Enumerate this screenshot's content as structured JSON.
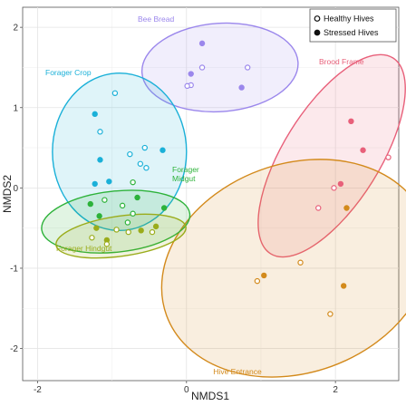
{
  "chart_data": {
    "type": "scatter",
    "xlabel": "NMDS1",
    "ylabel": "NMDS2",
    "xlim": [
      -2.2,
      2.85
    ],
    "ylim": [
      -2.4,
      2.25
    ],
    "x_ticks": [
      -2,
      0,
      2
    ],
    "y_ticks": [
      -2,
      -1,
      0,
      1,
      2
    ],
    "x_tick_labels": [
      "-2",
      "0",
      "2"
    ],
    "y_tick_labels": [
      "-2",
      "-1",
      "0",
      "1",
      "2"
    ],
    "grid": true,
    "legend_position": "top-right",
    "legend": {
      "entries": [
        {
          "label": "Healthy Hives",
          "marker": "open-circle"
        },
        {
          "label": "Stressed Hives",
          "marker": "filled-circle"
        }
      ]
    },
    "groups": [
      {
        "name": "Bee Bread",
        "color": "#9b87ec",
        "ellipse": {
          "cx": 0.45,
          "cy": 1.5,
          "rx": 1.05,
          "ry": 0.55,
          "angle": -4
        },
        "points": [
          {
            "x": 0.21,
            "y": 1.8,
            "status": "stressed"
          },
          {
            "x": 0.06,
            "y": 1.42,
            "status": "stressed"
          },
          {
            "x": 0.21,
            "y": 1.5,
            "status": "healthy"
          },
          {
            "x": 0.82,
            "y": 1.5,
            "status": "healthy"
          },
          {
            "x": 0.06,
            "y": 1.28,
            "status": "healthy"
          },
          {
            "x": 0.01,
            "y": 1.27,
            "status": "healthy"
          },
          {
            "x": 0.74,
            "y": 1.25,
            "status": "stressed"
          }
        ]
      },
      {
        "name": "Brood Frame",
        "color": "#e8607a",
        "ellipse": {
          "cx": 1.95,
          "cy": 0.4,
          "rx": 1.55,
          "ry": 0.6,
          "angle": -58
        },
        "points": [
          {
            "x": 2.21,
            "y": 0.83,
            "status": "stressed"
          },
          {
            "x": 2.37,
            "y": 0.47,
            "status": "stressed"
          },
          {
            "x": 2.71,
            "y": 0.38,
            "status": "healthy"
          },
          {
            "x": 1.98,
            "y": 0.0,
            "status": "healthy"
          },
          {
            "x": 2.07,
            "y": 0.05,
            "status": "stressed"
          },
          {
            "x": 1.77,
            "y": -0.25,
            "status": "healthy"
          }
        ]
      },
      {
        "name": "Hive Entrance",
        "color": "#d38a1c",
        "ellipse": {
          "cx": 1.47,
          "cy": -1.0,
          "rx": 1.85,
          "ry": 1.3,
          "angle": -20
        },
        "points": [
          {
            "x": 2.15,
            "y": -0.25,
            "status": "stressed"
          },
          {
            "x": 1.53,
            "y": -0.93,
            "status": "healthy"
          },
          {
            "x": 1.04,
            "y": -1.09,
            "status": "stressed"
          },
          {
            "x": 0.95,
            "y": -1.16,
            "status": "healthy"
          },
          {
            "x": 2.11,
            "y": -1.22,
            "status": "stressed"
          },
          {
            "x": 1.93,
            "y": -1.57,
            "status": "healthy"
          }
        ]
      },
      {
        "name": "Forager Crop",
        "color": "#1ab0d8",
        "ellipse": {
          "cx": -0.9,
          "cy": 0.45,
          "rx": 0.9,
          "ry": 0.98,
          "angle": 0
        },
        "points": [
          {
            "x": -0.96,
            "y": 1.18,
            "status": "healthy"
          },
          {
            "x": -1.23,
            "y": 0.92,
            "status": "stressed"
          },
          {
            "x": -1.16,
            "y": 0.7,
            "status": "healthy"
          },
          {
            "x": -0.56,
            "y": 0.5,
            "status": "healthy"
          },
          {
            "x": -0.32,
            "y": 0.47,
            "status": "stressed"
          },
          {
            "x": -0.76,
            "y": 0.42,
            "status": "healthy"
          },
          {
            "x": -1.16,
            "y": 0.35,
            "status": "stressed"
          },
          {
            "x": -0.62,
            "y": 0.3,
            "status": "healthy"
          },
          {
            "x": -0.54,
            "y": 0.25,
            "status": "healthy"
          },
          {
            "x": -1.23,
            "y": 0.05,
            "status": "stressed"
          },
          {
            "x": -1.04,
            "y": 0.08,
            "status": "stressed"
          }
        ]
      },
      {
        "name": "Forager Midgut",
        "color": "#2db23a",
        "ellipse": {
          "cx": -0.95,
          "cy": -0.42,
          "rx": 1.0,
          "ry": 0.38,
          "angle": -6
        },
        "points": [
          {
            "x": -0.72,
            "y": 0.07,
            "status": "healthy"
          },
          {
            "x": -0.66,
            "y": -0.12,
            "status": "stressed"
          },
          {
            "x": -1.1,
            "y": -0.15,
            "status": "healthy"
          },
          {
            "x": -1.29,
            "y": -0.2,
            "status": "stressed"
          },
          {
            "x": -0.86,
            "y": -0.22,
            "status": "healthy"
          },
          {
            "x": -0.3,
            "y": -0.25,
            "status": "stressed"
          },
          {
            "x": -0.72,
            "y": -0.32,
            "status": "healthy"
          },
          {
            "x": -1.17,
            "y": -0.35,
            "status": "stressed"
          },
          {
            "x": -0.79,
            "y": -0.43,
            "status": "healthy"
          }
        ]
      },
      {
        "name": "Forager Hindgut",
        "color": "#9aac1a",
        "ellipse": {
          "cx": -0.88,
          "cy": -0.6,
          "rx": 0.88,
          "ry": 0.25,
          "angle": -8
        },
        "points": [
          {
            "x": -1.21,
            "y": -0.5,
            "status": "stressed"
          },
          {
            "x": -0.94,
            "y": -0.52,
            "status": "healthy"
          },
          {
            "x": -0.61,
            "y": -0.53,
            "status": "stressed"
          },
          {
            "x": -0.41,
            "y": -0.48,
            "status": "stressed"
          },
          {
            "x": -0.46,
            "y": -0.55,
            "status": "healthy"
          },
          {
            "x": -0.78,
            "y": -0.55,
            "status": "healthy"
          },
          {
            "x": -1.27,
            "y": -0.62,
            "status": "healthy"
          },
          {
            "x": -1.07,
            "y": -0.65,
            "status": "stressed"
          },
          {
            "x": -1.07,
            "y": -0.7,
            "status": "healthy"
          }
        ]
      }
    ]
  }
}
